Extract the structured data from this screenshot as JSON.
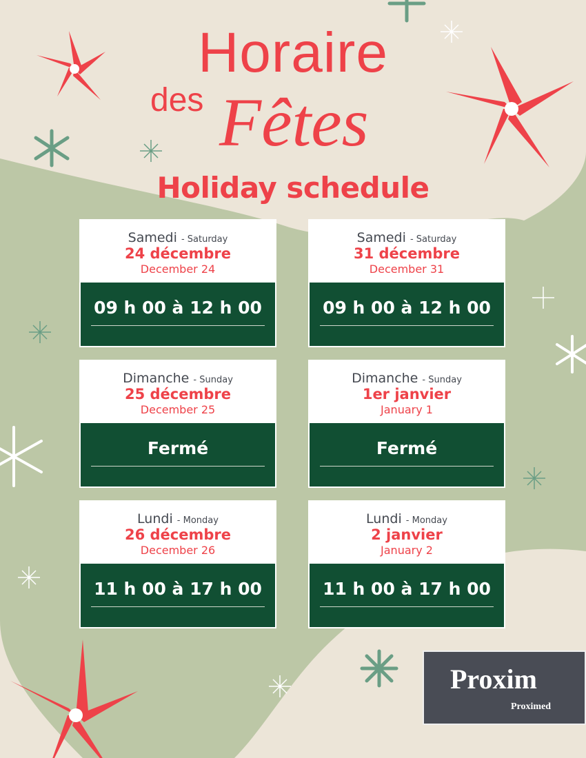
{
  "title": {
    "line1": "Horaire",
    "des": "des",
    "fetes": "Fêtes",
    "subtitle": "Holiday schedule"
  },
  "cards": [
    {
      "day_fr": "Samedi",
      "day_en": "- Saturday",
      "date_fr": "24 décembre",
      "date_en": "December 24",
      "hours": "09 h 00 à 12 h 00"
    },
    {
      "day_fr": "Samedi",
      "day_en": "- Saturday",
      "date_fr": "31 décembre",
      "date_en": "December 31",
      "hours": "09 h 00 à 12 h 00"
    },
    {
      "day_fr": "Dimanche",
      "day_en": "- Sunday",
      "date_fr": "25 décembre",
      "date_en": "December 25",
      "hours": "Fermé"
    },
    {
      "day_fr": "Dimanche",
      "day_en": "- Sunday",
      "date_fr": "1er janvier",
      "date_en": "January 1",
      "hours": "Fermé"
    },
    {
      "day_fr": "Lundi",
      "day_en": "- Monday",
      "date_fr": "26 décembre",
      "date_en": "December 26",
      "hours": "11 h 00 à 17 h 00"
    },
    {
      "day_fr": "Lundi",
      "day_en": "- Monday",
      "date_fr": "2 janvier",
      "date_en": "January 2",
      "hours": "11 h 00 à 17 h 00"
    }
  ],
  "logo": {
    "brand": "Proxim",
    "sub": "Proximed"
  },
  "colors": {
    "red": "#ee4249",
    "green": "#114f33",
    "sage": "#bcc7a6",
    "beige": "#ece5d8",
    "logo_bg": "#494c55",
    "leaf": "#8dc63f"
  }
}
